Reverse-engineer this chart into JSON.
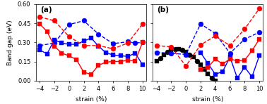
{
  "panel_a": {
    "blue_solid_square": {
      "x": [
        -4,
        -3,
        -2,
        -1,
        0,
        1,
        2,
        3,
        4,
        5,
        6,
        7,
        8,
        9,
        10
      ],
      "y": [
        0.24,
        0.21,
        0.32,
        0.295,
        0.285,
        0.285,
        0.31,
        0.335,
        0.27,
        0.22,
        0.2,
        0.195,
        0.19,
        0.215,
        0.125
      ]
    },
    "blue_dashed_circle": {
      "x": [
        -4,
        -2,
        0,
        2,
        4,
        6,
        8,
        9,
        10
      ],
      "y": [
        0.275,
        0.295,
        0.44,
        0.47,
        0.365,
        0.29,
        0.305,
        0.295,
        0.3
      ]
    },
    "red_solid_square": {
      "x": [
        -4,
        -3,
        -2,
        -1,
        0,
        1,
        2,
        3,
        4,
        5,
        6,
        7,
        8,
        9,
        10
      ],
      "y": [
        0.445,
        0.385,
        0.27,
        0.215,
        0.195,
        0.165,
        0.065,
        0.05,
        0.12,
        0.145,
        0.15,
        0.15,
        0.16,
        0.155,
        0.3
      ]
    },
    "red_dashed_circle": {
      "x": [
        -4,
        -2,
        0,
        2,
        4,
        6,
        8,
        10
      ],
      "y": [
        0.5,
        0.47,
        0.345,
        0.275,
        0.275,
        0.25,
        0.295,
        0.445
      ]
    }
  },
  "panel_b": {
    "black_solid": {
      "x": [
        -4,
        -3.5,
        -3,
        -2.5,
        -2,
        -1.5,
        -1,
        -0.5,
        0,
        0.5,
        1,
        1.5,
        2,
        2.5,
        3,
        3.5,
        4
      ],
      "y": [
        0.155,
        0.175,
        0.2,
        0.225,
        0.24,
        0.245,
        0.245,
        0.24,
        0.225,
        0.205,
        0.185,
        0.155,
        0.125,
        0.09,
        0.055,
        0.02,
        0.0
      ]
    },
    "black_square_markers": {
      "x": [
        -4,
        -3,
        -2,
        -1,
        0,
        1,
        2,
        3,
        4
      ],
      "y": [
        0.155,
        0.2,
        0.24,
        0.245,
        0.225,
        0.185,
        0.125,
        0.055,
        0.0
      ]
    },
    "black_circle_markers": {
      "x": [
        -3.5,
        -2.5,
        -1.5,
        -0.5,
        0.5,
        1.5,
        2.5,
        3.5
      ],
      "y": [
        0.175,
        0.225,
        0.245,
        0.24,
        0.205,
        0.155,
        0.09,
        0.02
      ]
    },
    "blue_solid_square": {
      "x": [
        2,
        3,
        4,
        5,
        6,
        7,
        8,
        9,
        10
      ],
      "y": [
        0.22,
        0.135,
        0.05,
        0.07,
        0.185,
        0.02,
        0.105,
        0.03,
        0.195
      ]
    },
    "blue_dashed_circle": {
      "x": [
        -4,
        -2,
        0,
        2,
        4,
        6,
        8,
        10
      ],
      "y": [
        0.22,
        0.215,
        0.205,
        0.445,
        0.37,
        0.215,
        0.325,
        0.38
      ]
    },
    "red_solid_square": {
      "x": [
        2,
        3,
        4,
        5,
        6,
        7,
        8,
        9,
        10
      ],
      "y": [
        0.085,
        0.105,
        0.17,
        0.13,
        0.17,
        0.155,
        0.16,
        0.235,
        0.325
      ]
    },
    "red_dashed_circle": {
      "x": [
        -4,
        -2,
        0,
        2,
        4,
        6,
        8,
        10
      ],
      "y": [
        0.275,
        0.265,
        0.115,
        0.28,
        0.35,
        0.275,
        0.405,
        0.565
      ]
    }
  },
  "ylim": [
    0.0,
    0.6
  ],
  "xlim": [
    -4.5,
    10.5
  ],
  "xticks": [
    -4,
    -2,
    0,
    2,
    4,
    6,
    8,
    10
  ],
  "yticks": [
    0.0,
    0.15,
    0.3,
    0.45,
    0.6
  ],
  "xlabel": "strain (%)",
  "ylabel": "Band gap (eV)",
  "label_a": "(a)",
  "label_b": "(b)",
  "blue": "#0000ff",
  "red": "#ff0000",
  "black": "#000000"
}
